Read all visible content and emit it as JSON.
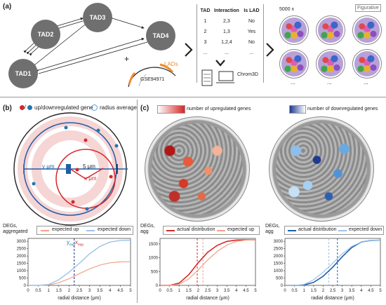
{
  "panels": {
    "a": "(a)",
    "b": "(b)",
    "c": "(c)"
  },
  "a": {
    "tads": [
      "TAD1",
      "TAD2",
      "TAD3",
      "TAD4"
    ],
    "plus": "+",
    "lads": "LADs",
    "gse": "GSE94971",
    "table": {
      "headers": [
        "TAD",
        "Interaction",
        "Is LAD"
      ],
      "rows": [
        [
          "1",
          "2,3",
          "No"
        ],
        [
          "2",
          "1,3",
          "Yes"
        ],
        [
          "3",
          "1,2,4",
          "No"
        ],
        [
          "...",
          "...",
          "..."
        ]
      ]
    },
    "chrom3d": "Chrom3D",
    "sample_label": "5000 x",
    "figurative": "Figurative",
    "ellipsis": "..."
  },
  "b": {
    "legend_gene": "up/downregulated gene",
    "legend_radius": "radius average",
    "y_um": "y μm",
    "five_um": "5 μm",
    "x_um": "x μm",
    "ylabel_line1": "DEGs,",
    "ylabel_line2": "aggregated",
    "legend_up": "expected up",
    "legend_down": "expected down",
    "yexp": "y",
    "xexp": "x",
    "exp_sub": "exp",
    "xlabel": "radial distance (μm)"
  },
  "c": {
    "legend_up": "number of upregulated genes",
    "legend_down": "number of downregulated genes",
    "ylabel_line1": "DEGs,",
    "ylabel_line2": "agg",
    "left_legend": [
      "actual distribution",
      "expected up"
    ],
    "right_legend": [
      "actual distribution",
      "expected down"
    ],
    "xlabel": "radial distance (μm)"
  },
  "colors": {
    "up": "#d62728",
    "up_light": "#f3a08a",
    "down": "#1f5fa8",
    "down_light": "#9cc3ea",
    "tad": "#6f6f6f"
  },
  "chart_data": [
    {
      "type": "line",
      "title": "",
      "xlabel": "radial distance (μm)",
      "ylabel": "DEGs, aggregated",
      "xlim": [
        0,
        5
      ],
      "ylim": [
        0,
        3200
      ],
      "x": [
        0,
        0.5,
        1,
        1.5,
        2,
        2.5,
        3,
        3.5,
        4,
        4.5,
        5
      ],
      "series": [
        {
          "name": "expected up",
          "values": [
            0,
            0,
            30,
            180,
            450,
            800,
            1120,
            1380,
            1540,
            1600,
            1610
          ]
        },
        {
          "name": "expected down",
          "values": [
            0,
            0,
            60,
            380,
            900,
            1500,
            2150,
            2650,
            2950,
            3060,
            3080
          ]
        }
      ],
      "xticks": [
        "0",
        "0.5",
        "1",
        "1.5",
        "2",
        "2.5",
        "3",
        "3.5",
        "4",
        "4.5",
        "5"
      ],
      "yticks": [
        "0",
        "500",
        "1000",
        "1500",
        "2000",
        "2500",
        "3000"
      ]
    },
    {
      "type": "line",
      "title": "",
      "xlabel": "radial distance (μm)",
      "ylabel": "DEGs, agg",
      "xlim": [
        0,
        5
      ],
      "ylim": [
        0,
        1700
      ],
      "x": [
        0,
        0.5,
        1,
        1.5,
        2,
        2.5,
        3,
        3.5,
        4,
        4.5,
        5
      ],
      "series": [
        {
          "name": "actual distribution",
          "values": [
            0,
            0,
            80,
            380,
            820,
            1200,
            1450,
            1590,
            1640,
            1650,
            1650
          ]
        },
        {
          "name": "expected up",
          "values": [
            0,
            0,
            40,
            230,
            560,
            920,
            1230,
            1460,
            1590,
            1640,
            1650
          ]
        }
      ],
      "xticks": [
        "0",
        "0.5",
        "1",
        "1.5",
        "2",
        "2.5",
        "3",
        "3.5",
        "4",
        "4.5",
        "5"
      ],
      "yticks": [
        "0",
        "500",
        "1000",
        "1500"
      ]
    },
    {
      "type": "line",
      "title": "",
      "xlabel": "radial distance (μm)",
      "ylabel": "DEGs, agg",
      "xlim": [
        0,
        5
      ],
      "ylim": [
        0,
        3200
      ],
      "x": [
        0,
        0.5,
        1,
        1.5,
        2,
        2.5,
        3,
        3.5,
        4,
        4.5,
        5
      ],
      "series": [
        {
          "name": "actual distribution",
          "values": [
            0,
            0,
            30,
            200,
            620,
            1230,
            1950,
            2580,
            2950,
            3060,
            3080
          ]
        },
        {
          "name": "expected down",
          "values": [
            0,
            0,
            60,
            380,
            900,
            1500,
            2150,
            2650,
            2950,
            3060,
            3080
          ]
        }
      ],
      "xticks": [
        "0",
        "0.5",
        "1",
        "1.5",
        "2",
        "2.5",
        "3",
        "3.5",
        "4",
        "4.5",
        "5"
      ],
      "yticks": [
        "0",
        "500",
        "1000",
        "1500",
        "2000",
        "2500",
        "3000"
      ]
    }
  ]
}
